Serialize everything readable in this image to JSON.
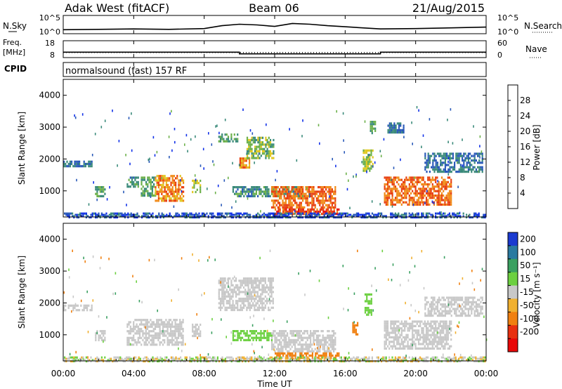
{
  "header": {
    "station": "Adak West (fitACF)",
    "beam": "Beam 06",
    "date": "21/Aug/2015"
  },
  "sky_panel": {
    "left_label": "N.Sky",
    "left_ticks": [
      "10^5",
      "10^0"
    ],
    "right_ticks": [
      "10^5",
      "10^0"
    ],
    "right_label": "N.Search"
  },
  "freq_panel": {
    "left_label": "Freq.",
    "left_unit": "[MHz]",
    "left_ticks": [
      "18",
      "8"
    ],
    "right_ticks": [
      "60",
      "0"
    ],
    "right_label": "Nave"
  },
  "cpid_panel": {
    "label": "CPID",
    "text": "normalsound (fast) 157 RF"
  },
  "x_axis": {
    "label": "Time UT",
    "ticks": [
      "00:00",
      "04:00",
      "08:00",
      "12:00",
      "16:00",
      "20:00",
      "00:00"
    ],
    "hours": [
      0,
      4,
      8,
      12,
      16,
      20,
      24
    ]
  },
  "power_panel": {
    "ylabel": "Slant Range [km]",
    "y_ticks": [
      1000,
      2000,
      3000,
      4000
    ],
    "ylim": [
      180,
      4500
    ],
    "colorbar_label": "Power [dB]",
    "colorbar_ticks": [
      "4",
      "8",
      "12",
      "16",
      "20",
      "24",
      "28"
    ],
    "colorbar_colors": [
      "#1030e8",
      "#2858b8",
      "#3a8a7a",
      "#6cb04a",
      "#e0c820",
      "#f08a18",
      "#e84010",
      "#e81010"
    ]
  },
  "velocity_panel": {
    "ylabel": "Slant Range [km]",
    "y_ticks": [
      1000,
      2000,
      3000,
      4000
    ],
    "ylim": [
      180,
      4500
    ],
    "colorbar_label": "Velocity [m s⁻¹]",
    "colorbar_ticks": [
      "200",
      "100",
      "50",
      "15",
      "-15",
      "-50",
      "-100",
      "-200"
    ],
    "colorbar_colors": [
      "#1a3ad0",
      "#2a7aa0",
      "#3aa060",
      "#6cd040",
      "#c8c8c8",
      "#f0b030",
      "#f08010",
      "#e83010",
      "#e80808"
    ]
  },
  "chart_data": [
    {
      "type": "line",
      "title": "N.Sky / N.Search",
      "x": [
        0,
        2,
        4,
        6,
        8,
        9,
        10,
        11,
        12,
        13,
        14,
        15,
        16,
        17,
        18,
        20,
        22,
        24
      ],
      "series": [
        {
          "name": "N.Sky",
          "values": [
            1.1,
            1.2,
            1.3,
            1.2,
            1.4,
            2.2,
            2.6,
            2.4,
            2.0,
            2.8,
            2.6,
            2.2,
            1.9,
            1.6,
            1.3,
            1.4,
            1.6,
            1.8
          ]
        }
      ]
    },
    {
      "type": "line",
      "title": "Freq. / Nave",
      "x": [
        0,
        10,
        10,
        18,
        18,
        24
      ],
      "series": [
        {
          "name": "Freq.",
          "values": [
            11.2,
            11.2,
            10.2,
            10.2,
            11.2,
            11.2
          ]
        },
        {
          "name": "Nave",
          "values": [
            18,
            18,
            18,
            18,
            18,
            18
          ]
        }
      ]
    },
    {
      "type": "heatmap",
      "title": "Power [dB]",
      "xlabel": "Time UT",
      "ylabel": "Slant Range [km]",
      "xlim": [
        0,
        24
      ],
      "ylim": [
        180,
        4500
      ],
      "clim": [
        0,
        30
      ],
      "regions": [
        {
          "t0": 0.0,
          "t1": 1.6,
          "r0": 1750,
          "r1": 1950,
          "value": 8
        },
        {
          "t0": 1.8,
          "t1": 2.4,
          "r0": 850,
          "r1": 1150,
          "value": 12
        },
        {
          "t0": 3.6,
          "t1": 4.3,
          "r0": 1150,
          "r1": 1450,
          "value": 10
        },
        {
          "t0": 4.4,
          "t1": 5.2,
          "r0": 850,
          "r1": 1450,
          "value": 12
        },
        {
          "t0": 5.2,
          "t1": 6.8,
          "r0": 700,
          "r1": 1500,
          "value": 22
        },
        {
          "t0": 7.3,
          "t1": 7.8,
          "r0": 950,
          "r1": 1350,
          "value": 16
        },
        {
          "t0": 8.8,
          "t1": 9.9,
          "r0": 2550,
          "r1": 2800,
          "value": 12
        },
        {
          "t0": 10.0,
          "t1": 10.6,
          "r0": 1750,
          "r1": 2050,
          "value": 22
        },
        {
          "t0": 10.4,
          "t1": 11.9,
          "r0": 2050,
          "r1": 2700,
          "value": 14
        },
        {
          "t0": 9.6,
          "t1": 13.6,
          "r0": 850,
          "r1": 1150,
          "value": 10
        },
        {
          "t0": 11.8,
          "t1": 15.4,
          "r0": 450,
          "r1": 1150,
          "value": 24
        },
        {
          "t0": 12.0,
          "t1": 15.6,
          "r0": 250,
          "r1": 450,
          "value": 26
        },
        {
          "t0": 17.0,
          "t1": 17.6,
          "r0": 1650,
          "r1": 2300,
          "value": 16
        },
        {
          "t0": 17.4,
          "t1": 17.7,
          "r0": 2800,
          "r1": 3200,
          "value": 12
        },
        {
          "t0": 18.4,
          "t1": 19.3,
          "r0": 2800,
          "r1": 3150,
          "value": 8
        },
        {
          "t0": 18.2,
          "t1": 22.0,
          "r0": 550,
          "r1": 1450,
          "value": 24
        },
        {
          "t0": 20.5,
          "t1": 23.8,
          "r0": 1600,
          "r1": 2200,
          "value": 8
        }
      ]
    },
    {
      "type": "heatmap",
      "title": "Velocity [m s⁻¹]",
      "xlabel": "Time UT",
      "ylabel": "Slant Range [km]",
      "xlim": [
        0,
        24
      ],
      "ylim": [
        180,
        4500
      ],
      "clim": [
        -200,
        200
      ],
      "regions": [
        {
          "t0": 0.0,
          "t1": 1.6,
          "r0": 1750,
          "r1": 1950,
          "value": 0
        },
        {
          "t0": 1.8,
          "t1": 2.4,
          "r0": 850,
          "r1": 1150,
          "value": 0
        },
        {
          "t0": 3.6,
          "t1": 6.8,
          "r0": 700,
          "r1": 1500,
          "value": 0
        },
        {
          "t0": 7.3,
          "t1": 7.8,
          "r0": 950,
          "r1": 1350,
          "value": 0
        },
        {
          "t0": 8.8,
          "t1": 11.9,
          "r0": 1750,
          "r1": 2800,
          "value": 0
        },
        {
          "t0": 9.6,
          "t1": 11.8,
          "r0": 850,
          "r1": 1150,
          "value": 20
        },
        {
          "t0": 11.8,
          "t1": 15.4,
          "r0": 450,
          "r1": 1150,
          "value": -10
        },
        {
          "t0": 12.0,
          "t1": 15.6,
          "r0": 250,
          "r1": 450,
          "value": -60
        },
        {
          "t0": 16.4,
          "t1": 16.7,
          "r0": 1000,
          "r1": 1400,
          "value": -50
        },
        {
          "t0": 17.1,
          "t1": 17.5,
          "r0": 1650,
          "r1": 2300,
          "value": 20
        },
        {
          "t0": 18.2,
          "t1": 22.0,
          "r0": 550,
          "r1": 1450,
          "value": 0
        },
        {
          "t0": 20.5,
          "t1": 23.8,
          "r0": 1600,
          "r1": 2200,
          "value": 0
        }
      ]
    }
  ]
}
